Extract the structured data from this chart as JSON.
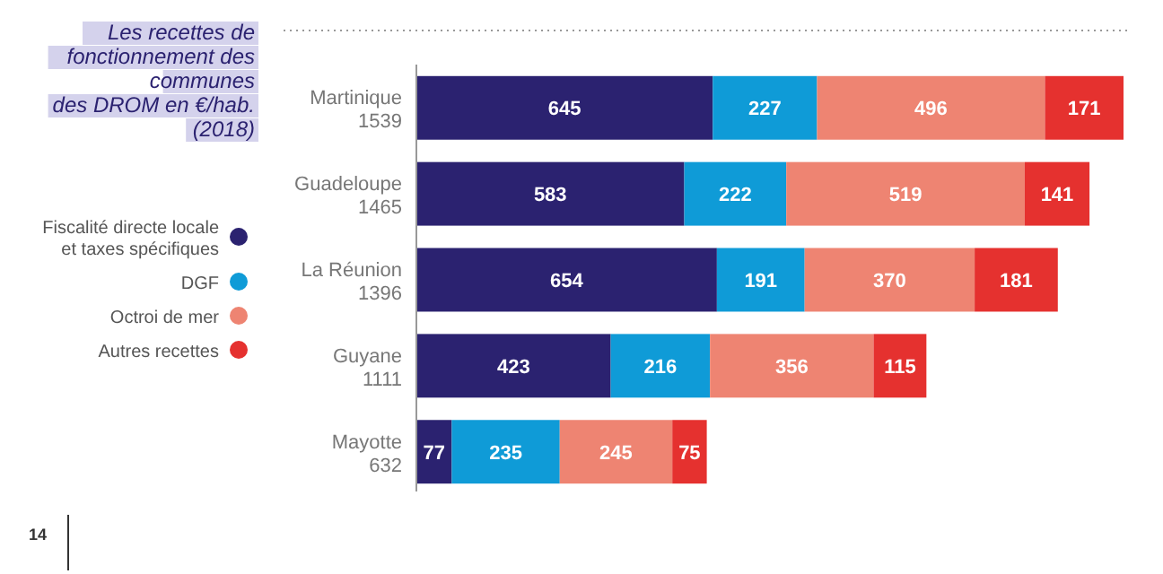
{
  "chart_data": {
    "type": "bar",
    "orientation": "horizontal",
    "stacked": true,
    "title": "Les recettes de\nfonctionnement des\ncommunes\ndes DROM en €/hab.\n(2018)",
    "categories": [
      "Martinique",
      "Guadeloupe",
      "La Réunion",
      "Guyane",
      "Mayotte"
    ],
    "totals": [
      "1539",
      "1465",
      "1396",
      "1111",
      "632"
    ],
    "series": [
      {
        "name": "Fiscalité directe locale et taxes spécifiques",
        "color": "#2b2270",
        "values": [
          645,
          583,
          654,
          423,
          77
        ]
      },
      {
        "name": "DGF",
        "color": "#0f9bd7",
        "values": [
          227,
          222,
          191,
          216,
          235
        ]
      },
      {
        "name": "Octroi de mer",
        "color": "#ee8472",
        "values": [
          496,
          519,
          370,
          356,
          245
        ]
      },
      {
        "name": "Autres recettes",
        "color": "#e5312f",
        "values": [
          171,
          141,
          181,
          115,
          75
        ]
      }
    ],
    "data_labels": true,
    "legend": "left",
    "annotations": [
      "14"
    ]
  }
}
